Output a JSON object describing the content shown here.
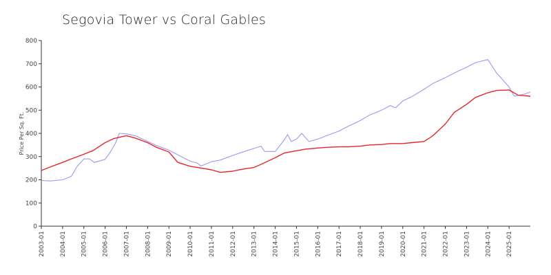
{
  "chart_data": {
    "type": "line",
    "title": "Segovia Tower vs Coral Gables",
    "xlabel": "",
    "ylabel": "Price Per Sq. Ft.",
    "ylim": [
      0,
      800
    ],
    "yticks": [
      "0",
      "100",
      "200",
      "300",
      "400",
      "500",
      "600",
      "700",
      "800"
    ],
    "xticks": [
      "2003-01",
      "2004-01",
      "2005-01",
      "2006-01",
      "2007-01",
      "2008-01",
      "2009-01",
      "2010-01",
      "2011-01",
      "2012-01",
      "2013-01",
      "2014-01",
      "2015-01",
      "2016-01",
      "2017-01",
      "2018-01",
      "2019-01",
      "2020-01",
      "2021-01",
      "2022-01",
      "2023-01",
      "2024-01",
      "2025-01"
    ],
    "grid": false,
    "colors": [
      "#9999ee",
      "#e8232a"
    ],
    "series": [
      {
        "points": [
          [
            "2003-01",
            197
          ],
          [
            "2003-06",
            195
          ],
          [
            "2004-01",
            200
          ],
          [
            "2004-06",
            215
          ],
          [
            "2004-09",
            255
          ],
          [
            "2005-01",
            290
          ],
          [
            "2005-04",
            290
          ],
          [
            "2005-07",
            275
          ],
          [
            "2006-01",
            288
          ],
          [
            "2006-04",
            320
          ],
          [
            "2006-07",
            360
          ],
          [
            "2006-09",
            400
          ],
          [
            "2007-01",
            398
          ],
          [
            "2007-06",
            390
          ],
          [
            "2008-01",
            365
          ],
          [
            "2008-06",
            348
          ],
          [
            "2009-01",
            328
          ],
          [
            "2009-06",
            308
          ],
          [
            "2010-01",
            280
          ],
          [
            "2010-05",
            272
          ],
          [
            "2010-07",
            260
          ],
          [
            "2010-09",
            265
          ],
          [
            "2011-01",
            278
          ],
          [
            "2011-06",
            285
          ],
          [
            "2012-01",
            305
          ],
          [
            "2012-06",
            318
          ],
          [
            "2013-01",
            335
          ],
          [
            "2013-05",
            345
          ],
          [
            "2013-07",
            322
          ],
          [
            "2014-01",
            322
          ],
          [
            "2014-06",
            370
          ],
          [
            "2014-08",
            395
          ],
          [
            "2014-10",
            365
          ],
          [
            "2015-01",
            375
          ],
          [
            "2015-04",
            400
          ],
          [
            "2015-08",
            365
          ],
          [
            "2016-01",
            375
          ],
          [
            "2016-06",
            390
          ],
          [
            "2017-01",
            410
          ],
          [
            "2017-06",
            430
          ],
          [
            "2018-01",
            455
          ],
          [
            "2018-06",
            478
          ],
          [
            "2019-01",
            500
          ],
          [
            "2019-06",
            520
          ],
          [
            "2019-09",
            510
          ],
          [
            "2020-01",
            540
          ],
          [
            "2020-06",
            558
          ],
          [
            "2021-01",
            590
          ],
          [
            "2021-06",
            615
          ],
          [
            "2022-01",
            640
          ],
          [
            "2022-06",
            660
          ],
          [
            "2023-01",
            685
          ],
          [
            "2023-06",
            705
          ],
          [
            "2024-01",
            718
          ],
          [
            "2024-06",
            660
          ],
          [
            "2025-01",
            600
          ],
          [
            "2025-04",
            560
          ],
          [
            "2025-10",
            570
          ],
          [
            "2026-01",
            578
          ]
        ]
      },
      {
        "points": [
          [
            "2003-01",
            240
          ],
          [
            "2003-06",
            255
          ],
          [
            "2004-01",
            275
          ],
          [
            "2004-06",
            290
          ],
          [
            "2005-01",
            310
          ],
          [
            "2005-06",
            325
          ],
          [
            "2006-01",
            360
          ],
          [
            "2006-06",
            378
          ],
          [
            "2007-01",
            390
          ],
          [
            "2007-06",
            380
          ],
          [
            "2008-01",
            360
          ],
          [
            "2008-06",
            340
          ],
          [
            "2009-01",
            320
          ],
          [
            "2009-06",
            275
          ],
          [
            "2010-01",
            258
          ],
          [
            "2010-06",
            252
          ],
          [
            "2011-01",
            243
          ],
          [
            "2011-06",
            232
          ],
          [
            "2012-01",
            237
          ],
          [
            "2012-06",
            245
          ],
          [
            "2013-01",
            253
          ],
          [
            "2013-06",
            270
          ],
          [
            "2014-01",
            295
          ],
          [
            "2014-06",
            315
          ],
          [
            "2015-01",
            325
          ],
          [
            "2015-06",
            332
          ],
          [
            "2016-01",
            337
          ],
          [
            "2016-06",
            340
          ],
          [
            "2017-01",
            342
          ],
          [
            "2017-06",
            342
          ],
          [
            "2018-01",
            345
          ],
          [
            "2018-06",
            350
          ],
          [
            "2019-01",
            352
          ],
          [
            "2019-06",
            356
          ],
          [
            "2020-01",
            356
          ],
          [
            "2020-06",
            360
          ],
          [
            "2021-01",
            365
          ],
          [
            "2021-06",
            390
          ],
          [
            "2022-01",
            440
          ],
          [
            "2022-06",
            490
          ],
          [
            "2023-01",
            525
          ],
          [
            "2023-06",
            555
          ],
          [
            "2024-01",
            575
          ],
          [
            "2024-06",
            585
          ],
          [
            "2025-01",
            587
          ],
          [
            "2025-06",
            565
          ],
          [
            "2026-01",
            560
          ]
        ]
      }
    ]
  }
}
